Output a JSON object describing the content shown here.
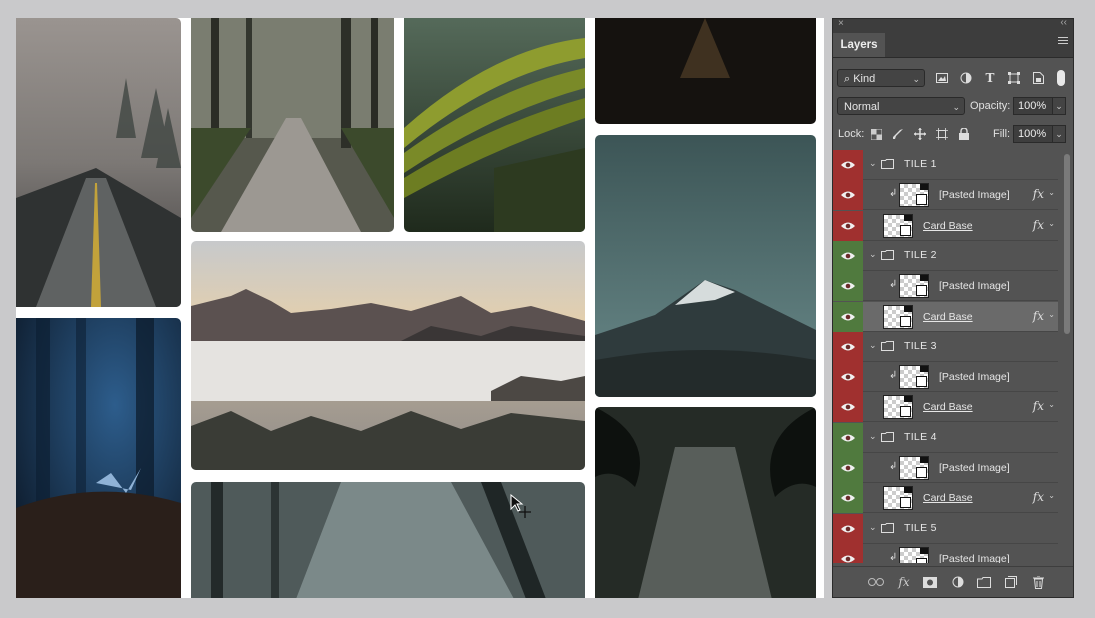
{
  "panel": {
    "tab_label": "Layers",
    "close_glyph": "×",
    "collapse_glyph": "‹‹",
    "filter": {
      "label": "⌕ Kind",
      "icons": [
        "image-filter-icon",
        "adjustment-filter-icon",
        "type-filter-icon",
        "shape-filter-icon",
        "smart-object-filter-icon"
      ]
    },
    "blend_mode": "Normal",
    "opacity_label": "Opacity:",
    "opacity_value": "100%",
    "lock_label": "Lock:",
    "fill_label": "Fill:",
    "fill_value": "100%",
    "layers": [
      {
        "kind": "group",
        "name": "TILE 1",
        "eye": "red"
      },
      {
        "kind": "pasted",
        "name": "[Pasted Image]",
        "eye": "red",
        "fx": true
      },
      {
        "kind": "base",
        "name": "Card Base",
        "eye": "red",
        "fx": true
      },
      {
        "kind": "group",
        "name": "TILE 2",
        "eye": "green"
      },
      {
        "kind": "pasted",
        "name": "[Pasted Image]",
        "eye": "green",
        "fx": false
      },
      {
        "kind": "base",
        "name": "Card Base",
        "eye": "green",
        "fx": true,
        "selected": true
      },
      {
        "kind": "group",
        "name": "TILE 3",
        "eye": "red"
      },
      {
        "kind": "pasted",
        "name": "[Pasted Image]",
        "eye": "red",
        "fx": false
      },
      {
        "kind": "base",
        "name": "Card Base",
        "eye": "red",
        "fx": true
      },
      {
        "kind": "group",
        "name": "TILE 4",
        "eye": "green"
      },
      {
        "kind": "pasted",
        "name": "[Pasted Image]",
        "eye": "green",
        "fx": false
      },
      {
        "kind": "base",
        "name": "Card Base",
        "eye": "green",
        "fx": true
      },
      {
        "kind": "group",
        "name": "TILE 5",
        "eye": "red"
      },
      {
        "kind": "pasted",
        "name": "[Pasted Image]",
        "eye": "red",
        "fx": false
      }
    ],
    "fx_glyph": "fx",
    "bottom_icons": [
      "link-layers-icon",
      "fx-icon",
      "mask-icon",
      "adjustment-icon",
      "new-group-icon",
      "new-layer-icon",
      "trash-icon"
    ]
  },
  "colors": {
    "eye_red": "#a0302f",
    "eye_green": "#507a3e",
    "panel_bg": "#535353",
    "selected_row": "#6a6a6a"
  }
}
